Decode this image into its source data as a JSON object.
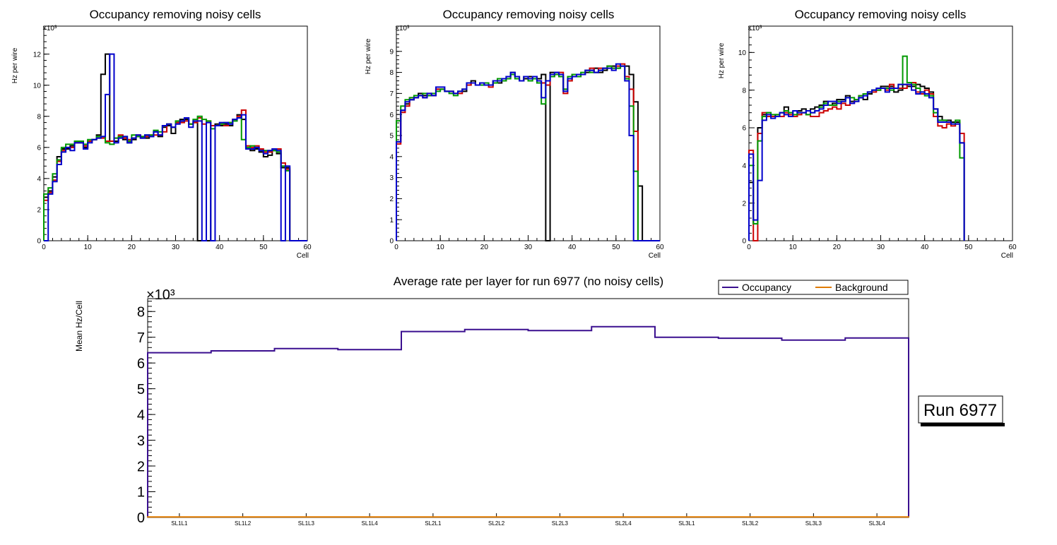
{
  "chart_data": [
    {
      "type": "histogram",
      "title": "Occupancy removing noisy cells",
      "xlabel": "Cell",
      "ylabel": "Hz per wire",
      "exponent_label": "×10³",
      "xlim": [
        0,
        60
      ],
      "ylim": [
        0,
        13.8
      ],
      "xticks": [
        0,
        10,
        20,
        30,
        40,
        50,
        60
      ],
      "yticks": [
        0,
        2,
        4,
        6,
        8,
        10,
        12
      ],
      "unit_scale": 1000,
      "series": [
        {
          "name": "black",
          "color": "#000000",
          "values": [
            2.8,
            3.2,
            4.1,
            5.4,
            5.9,
            5.9,
            6.1,
            6.3,
            6.3,
            6.0,
            6.4,
            6.5,
            6.8,
            10.7,
            12.0,
            6.4,
            6.4,
            6.7,
            6.5,
            6.3,
            6.5,
            6.7,
            6.6,
            6.6,
            6.7,
            7.0,
            6.7,
            7.3,
            7.4,
            6.9,
            7.6,
            7.8,
            7.8,
            7.5,
            7.6,
            0,
            0,
            0,
            7.4,
            7.5,
            7.4,
            7.5,
            7.4,
            7.8,
            8.1,
            7.8,
            5.9,
            5.8,
            5.9,
            5.7,
            5.4,
            5.5,
            5.8,
            5.6,
            4.7,
            4.7,
            0,
            0,
            0,
            0
          ]
        },
        {
          "name": "red",
          "color": "#cc0000",
          "values": [
            2.6,
            3.1,
            3.9,
            5.1,
            5.8,
            6.0,
            6.0,
            6.3,
            6.4,
            6.1,
            6.4,
            6.5,
            6.6,
            6.6,
            6.4,
            6.4,
            6.6,
            6.8,
            6.6,
            6.5,
            6.6,
            6.8,
            6.7,
            6.7,
            6.8,
            6.8,
            6.8,
            7.0,
            7.5,
            7.3,
            7.6,
            7.6,
            7.7,
            7.5,
            7.6,
            7.9,
            7.5,
            7.7,
            7.4,
            7.4,
            7.5,
            7.4,
            7.6,
            7.8,
            8.0,
            8.4,
            6.1,
            6.0,
            6.1,
            5.9,
            5.7,
            5.7,
            5.9,
            5.9,
            5.0,
            4.6,
            0,
            0,
            0,
            0
          ]
        },
        {
          "name": "green",
          "color": "#009900",
          "values": [
            3.0,
            3.4,
            4.3,
            5.2,
            6.0,
            6.2,
            6.2,
            6.4,
            6.4,
            6.2,
            6.5,
            6.5,
            6.7,
            6.7,
            6.3,
            6.2,
            6.6,
            6.7,
            6.7,
            6.4,
            6.8,
            6.7,
            6.7,
            6.8,
            6.8,
            7.1,
            7.0,
            7.4,
            7.5,
            7.3,
            7.7,
            7.7,
            7.9,
            7.5,
            7.8,
            8.0,
            7.8,
            7.7,
            7.2,
            7.4,
            7.5,
            7.6,
            7.6,
            7.7,
            7.9,
            6.5,
            6.0,
            6.1,
            6.0,
            5.8,
            5.8,
            5.8,
            5.8,
            5.7,
            4.8,
            4.5,
            0,
            0,
            0,
            0
          ]
        },
        {
          "name": "blue",
          "color": "#0000cc",
          "values": [
            0,
            3.0,
            3.8,
            4.9,
            5.7,
            6.0,
            5.8,
            6.3,
            6.3,
            5.9,
            6.3,
            6.5,
            6.6,
            6.7,
            9.4,
            12.0,
            6.3,
            6.6,
            6.7,
            6.3,
            6.6,
            6.8,
            6.6,
            6.8,
            6.7,
            7.0,
            6.8,
            7.4,
            7.5,
            7.3,
            7.5,
            7.7,
            7.9,
            7.3,
            7.7,
            7.7,
            0,
            7.6,
            0,
            7.4,
            7.6,
            7.6,
            7.5,
            7.8,
            7.9,
            8.1,
            5.9,
            5.9,
            6.0,
            5.8,
            5.6,
            5.8,
            5.9,
            5.8,
            0,
            4.8,
            0,
            0,
            0,
            0
          ]
        }
      ]
    },
    {
      "type": "histogram",
      "title": "Occupancy removing noisy cells",
      "xlabel": "Cell",
      "ylabel": "Hz per wire",
      "exponent_label": "×10³",
      "xlim": [
        0,
        60
      ],
      "ylim": [
        0,
        10.2
      ],
      "xticks": [
        0,
        10,
        20,
        30,
        40,
        50,
        60
      ],
      "yticks": [
        0,
        1,
        2,
        3,
        4,
        5,
        6,
        7,
        8,
        9
      ],
      "unit_scale": 1000,
      "series": [
        {
          "name": "black",
          "color": "#000000",
          "values": [
            4.7,
            6.2,
            6.5,
            6.7,
            6.8,
            7.0,
            6.9,
            6.9,
            6.9,
            7.2,
            7.2,
            7.1,
            7.1,
            7.0,
            7.1,
            7.1,
            7.4,
            7.6,
            7.4,
            7.5,
            7.5,
            7.4,
            7.6,
            7.5,
            7.6,
            7.8,
            8.0,
            7.8,
            7.6,
            7.7,
            7.8,
            7.8,
            7.7,
            7.9,
            0,
            8.0,
            8.0,
            7.8,
            7.2,
            7.6,
            7.9,
            7.9,
            7.9,
            8.0,
            8.1,
            8.2,
            8.0,
            8.1,
            8.3,
            8.3,
            8.2,
            8.3,
            8.3,
            7.9,
            6.6,
            2.6,
            0,
            0,
            0,
            0
          ]
        },
        {
          "name": "red",
          "color": "#cc0000",
          "values": [
            4.6,
            6.1,
            6.4,
            6.8,
            6.8,
            6.9,
            6.8,
            7.0,
            6.9,
            7.2,
            7.2,
            7.1,
            7.1,
            7.0,
            7.0,
            7.2,
            7.4,
            7.5,
            7.4,
            7.5,
            7.5,
            7.3,
            7.5,
            7.6,
            7.6,
            7.7,
            7.9,
            7.8,
            7.6,
            7.8,
            7.7,
            7.8,
            7.6,
            7.5,
            7.4,
            7.8,
            7.9,
            8.0,
            7.0,
            7.6,
            7.9,
            7.8,
            7.9,
            8.1,
            8.2,
            8.0,
            8.2,
            8.2,
            8.3,
            8.2,
            8.3,
            8.4,
            7.8,
            7.2,
            5.2,
            0,
            0,
            0,
            0,
            0
          ]
        },
        {
          "name": "green",
          "color": "#009900",
          "values": [
            5.7,
            6.4,
            6.7,
            6.8,
            6.9,
            6.9,
            7.0,
            6.9,
            7.0,
            7.1,
            7.2,
            7.1,
            7.0,
            6.9,
            7.1,
            7.2,
            7.5,
            7.5,
            7.4,
            7.4,
            7.5,
            7.4,
            7.5,
            7.7,
            7.6,
            7.7,
            7.9,
            7.7,
            7.6,
            7.8,
            7.6,
            7.7,
            7.5,
            6.5,
            7.6,
            7.8,
            7.9,
            7.8,
            7.2,
            7.8,
            7.9,
            7.8,
            8.0,
            8.1,
            8.0,
            8.0,
            8.1,
            8.2,
            8.3,
            8.2,
            8.2,
            8.3,
            7.7,
            6.4,
            3.3,
            0,
            0,
            0,
            0,
            0
          ]
        },
        {
          "name": "blue",
          "color": "#0000cc",
          "values": [
            4.7,
            6.2,
            6.6,
            6.7,
            6.8,
            6.9,
            6.8,
            7.0,
            6.9,
            7.3,
            7.3,
            7.1,
            7.1,
            7.0,
            7.1,
            7.2,
            7.5,
            7.5,
            7.4,
            7.5,
            7.4,
            7.4,
            7.6,
            7.6,
            7.7,
            7.8,
            8.0,
            7.8,
            7.6,
            7.8,
            7.7,
            7.8,
            7.6,
            6.8,
            7.6,
            7.9,
            8.0,
            7.9,
            7.1,
            7.7,
            7.8,
            7.9,
            7.9,
            8.1,
            8.1,
            8.0,
            8.1,
            8.2,
            8.2,
            8.1,
            8.4,
            8.3,
            7.6,
            5.0,
            0,
            0,
            0,
            0,
            0,
            0
          ]
        }
      ]
    },
    {
      "type": "histogram",
      "title": "Occupancy removing noisy cells",
      "xlabel": "Cell",
      "ylabel": "Hz per wire",
      "exponent_label": "×10³",
      "xlim": [
        0,
        60
      ],
      "ylim": [
        0,
        11.4
      ],
      "xticks": [
        0,
        10,
        20,
        30,
        40,
        50,
        60
      ],
      "yticks": [
        0,
        2,
        4,
        6,
        8,
        10
      ],
      "unit_scale": 1000,
      "series": [
        {
          "name": "black",
          "color": "#000000",
          "values": [
            3.1,
            0.9,
            6.0,
            6.7,
            6.8,
            6.6,
            6.7,
            6.8,
            7.1,
            6.8,
            6.6,
            6.9,
            7.0,
            6.9,
            7.0,
            7.1,
            7.2,
            7.4,
            7.2,
            7.3,
            7.5,
            7.5,
            7.7,
            7.4,
            7.4,
            7.6,
            7.5,
            7.8,
            8.0,
            8.0,
            8.2,
            8.2,
            8.2,
            7.9,
            8.0,
            8.3,
            8.2,
            8.2,
            8.3,
            8.2,
            8.1,
            7.9,
            7.0,
            6.6,
            6.4,
            6.4,
            6.3,
            6.3,
            5.2
          ]
        },
        {
          "name": "red",
          "color": "#cc0000",
          "values": [
            4.8,
            0,
            5.7,
            6.8,
            6.6,
            6.6,
            6.6,
            6.6,
            6.8,
            6.7,
            6.6,
            6.7,
            6.8,
            6.7,
            6.6,
            6.6,
            6.8,
            6.9,
            7.0,
            7.1,
            7.0,
            7.3,
            7.2,
            7.3,
            7.5,
            7.7,
            7.8,
            7.9,
            7.9,
            8.0,
            8.1,
            8.0,
            8.3,
            8.1,
            8.1,
            8.1,
            8.3,
            8.4,
            7.9,
            7.8,
            8.0,
            7.8,
            6.6,
            6.1,
            6.0,
            6.2,
            6.1,
            6.2,
            5.7
          ]
        },
        {
          "name": "green",
          "color": "#009900",
          "values": [
            4.0,
            0.9,
            5.3,
            6.6,
            6.8,
            6.7,
            6.7,
            6.8,
            6.9,
            6.8,
            6.7,
            6.8,
            6.8,
            6.7,
            6.8,
            6.9,
            7.1,
            7.3,
            7.2,
            7.2,
            7.4,
            7.4,
            7.6,
            7.6,
            7.5,
            7.7,
            7.8,
            7.9,
            8.0,
            8.0,
            8.1,
            8.1,
            8.0,
            8.1,
            8.3,
            9.8,
            8.4,
            8.3,
            8.1,
            7.9,
            7.7,
            7.7,
            6.8,
            6.4,
            6.4,
            6.3,
            6.2,
            6.4,
            4.4
          ]
        },
        {
          "name": "blue",
          "color": "#0000cc",
          "values": [
            4.6,
            1.1,
            3.2,
            6.4,
            6.7,
            6.5,
            6.6,
            6.8,
            6.7,
            6.6,
            6.9,
            6.8,
            6.8,
            6.9,
            6.8,
            6.9,
            7.0,
            7.2,
            7.4,
            7.4,
            7.3,
            7.4,
            7.6,
            7.3,
            7.4,
            7.6,
            7.7,
            7.9,
            8.0,
            8.1,
            8.1,
            7.9,
            8.1,
            8.1,
            8.3,
            8.3,
            8.3,
            8.0,
            7.8,
            7.9,
            7.8,
            7.6,
            7.0,
            6.3,
            6.3,
            6.3,
            6.2,
            6.2,
            5.2
          ]
        }
      ]
    },
    {
      "type": "histogram",
      "title": "Average rate per layer for run 6977 (no noisy cells)",
      "xlabel": "",
      "ylabel": "Mean Hz/Cell",
      "exponent_label": "×10³",
      "ylim": [
        0,
        8.5
      ],
      "yticks": [
        0,
        1,
        2,
        3,
        4,
        5,
        6,
        7,
        8
      ],
      "unit_scale": 1000,
      "categories": [
        "SL1L1",
        "SL1L2",
        "SL1L3",
        "SL1L4",
        "SL2L1",
        "SL2L2",
        "SL2L3",
        "SL2L4",
        "SL3L1",
        "SL3L2",
        "SL3L3",
        "SL3L4"
      ],
      "legend_position": "top-right",
      "series": [
        {
          "name": "Occupancy",
          "color": "#3a0f8f",
          "values": [
            6.4,
            6.47,
            6.56,
            6.52,
            7.22,
            7.3,
            7.26,
            7.41,
            7.0,
            6.96,
            6.89,
            6.97
          ]
        },
        {
          "name": "Background",
          "color": "#e07b00",
          "values": [
            0.02,
            0.02,
            0.02,
            0.02,
            0.02,
            0.02,
            0.02,
            0.02,
            0.02,
            0.02,
            0.02,
            0.02
          ]
        }
      ]
    }
  ],
  "run_label": "Run 6977"
}
